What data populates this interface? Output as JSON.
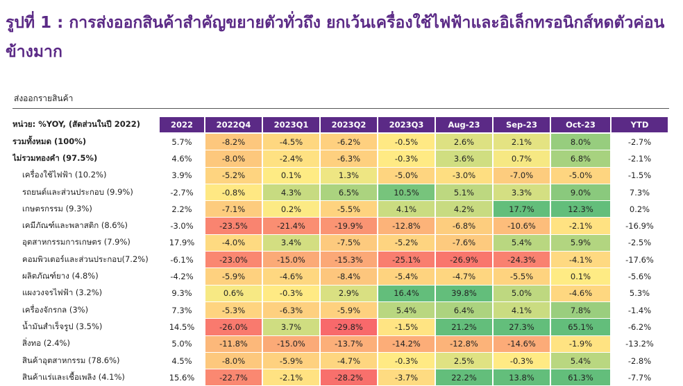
{
  "title": "รูปที่ 1 : การส่งออกสินค้าสำคัญขยายตัวทั่วถึง ยกเว้นเครื่องใช้ไฟฟ้าและอิเล็กทรอนิกส์หดตัวค่อนข้างมาก",
  "subtitle": "ส่งออกรายสินค้า",
  "table": {
    "unit_label": "หน่วย: %YOY, (สัดส่วนในปี 2022)",
    "columns": [
      "2022",
      "2022Q4",
      "2023Q1",
      "2023Q2",
      "2023Q3",
      "Aug-23",
      "Sep-23",
      "Oct-23",
      "YTD"
    ],
    "rows": [
      {
        "label": "รวมทั้งหมด (100%)",
        "bold": true,
        "values": [
          "5.7%",
          "-8.2%",
          "-4.5%",
          "-6.2%",
          "-0.5%",
          "2.6%",
          "2.1%",
          "8.0%",
          "-2.7%"
        ]
      },
      {
        "label": "ไม่รวมทองคำ (97.5%)",
        "bold": true,
        "values": [
          "4.6%",
          "-8.0%",
          "-2.4%",
          "-6.3%",
          "-0.3%",
          "3.6%",
          "0.7%",
          "6.8%",
          "-2.1%"
        ]
      },
      {
        "label": "เครื่องใช้ไฟฟ้า (10.2%)",
        "bold": false,
        "values": [
          "3.9%",
          "-5.2%",
          "0.1%",
          "1.3%",
          "-5.0%",
          "-3.0%",
          "-7.0%",
          "-5.0%",
          "-1.5%"
        ]
      },
      {
        "label": "รถยนต์และส่วนประกอบ (9.9%)",
        "bold": false,
        "values": [
          "-2.7%",
          "-0.8%",
          "4.3%",
          "6.5%",
          "10.5%",
          "5.1%",
          "3.3%",
          "9.0%",
          "7.3%"
        ]
      },
      {
        "label": "เกษตรกรรม (9.3%)",
        "bold": false,
        "values": [
          "2.2%",
          "-7.1%",
          "0.2%",
          "-5.5%",
          "4.1%",
          "4.2%",
          "17.7%",
          "12.3%",
          "0.2%"
        ]
      },
      {
        "label": "เคมีภัณฑ์และพลาสติก (8.6%)",
        "bold": false,
        "values": [
          "-3.0%",
          "-23.5%",
          "-21.4%",
          "-19.9%",
          "-12.8%",
          "-6.8%",
          "-10.6%",
          "-2.1%",
          "-16.9%"
        ]
      },
      {
        "label": "อุตสาหกรรมการเกษตร (7.9%)",
        "bold": false,
        "values": [
          "17.9%",
          "-4.0%",
          "3.4%",
          "-7.5%",
          "-5.2%",
          "-7.6%",
          "5.4%",
          "5.9%",
          "-2.5%"
        ]
      },
      {
        "label": "คอมพิวเตอร์และส่วนประกอบ(7.2%)",
        "bold": false,
        "values": [
          "-6.1%",
          "-23.0%",
          "-15.0%",
          "-15.3%",
          "-25.1%",
          "-26.9%",
          "-24.3%",
          "-4.1%",
          "-17.6%"
        ]
      },
      {
        "label": "ผลิตภัณฑ์ยาง (4.8%)",
        "bold": false,
        "values": [
          "-4.2%",
          "-5.9%",
          "-4.6%",
          "-8.4%",
          "-5.4%",
          "-4.7%",
          "-5.5%",
          "0.1%",
          "-5.6%"
        ]
      },
      {
        "label": "แผงวงจรไฟฟ้า (3.2%)",
        "bold": false,
        "values": [
          "9.3%",
          "0.6%",
          "-0.3%",
          "2.9%",
          "16.4%",
          "39.8%",
          "5.0%",
          "-4.6%",
          "5.3%"
        ]
      },
      {
        "label": "เครื่องจักรกล (3%)",
        "bold": false,
        "values": [
          "7.3%",
          "-5.3%",
          "-6.3%",
          "-5.9%",
          "5.4%",
          "6.4%",
          "4.1%",
          "7.8%",
          "-1.4%"
        ]
      },
      {
        "label": "น้ำมันสำเร็จรูป (3.5%)",
        "bold": false,
        "values": [
          "14.5%",
          "-26.0%",
          "3.7%",
          "-29.8%",
          "-1.5%",
          "21.2%",
          "27.3%",
          "65.1%",
          "-6.2%"
        ]
      },
      {
        "label": "สิ่งทอ (2.4%)",
        "bold": false,
        "values": [
          "5.0%",
          "-11.8%",
          "-15.0%",
          "-13.7%",
          "-14.2%",
          "-12.8%",
          "-14.6%",
          "-1.9%",
          "-13.2%"
        ]
      },
      {
        "label": "สินค้าอุตสาหกรรม (78.6%)",
        "bold": false,
        "values": [
          "4.5%",
          "-8.0%",
          "-5.9%",
          "-4.7%",
          "-0.3%",
          "2.5%",
          "-0.3%",
          "5.4%",
          "-2.8%"
        ]
      },
      {
        "label": "สินค้าแร่และเชื้อเพลิง (4.1%)",
        "bold": false,
        "values": [
          "15.6%",
          "-22.7%",
          "-2.1%",
          "-28.2%",
          "-3.7%",
          "22.2%",
          "13.8%",
          "61.3%",
          "-7.7%"
        ]
      }
    ],
    "heat_columns": [
      "2022Q4",
      "2023Q1",
      "2023Q2",
      "2023Q3",
      "Aug-23",
      "Sep-23",
      "Oct-23"
    ],
    "colors": {
      "header_bg": "#5b2a86",
      "header_text": "#ffffff",
      "low": "#f8696b",
      "mid": "#ffeb84",
      "high": "#63be7b"
    }
  }
}
